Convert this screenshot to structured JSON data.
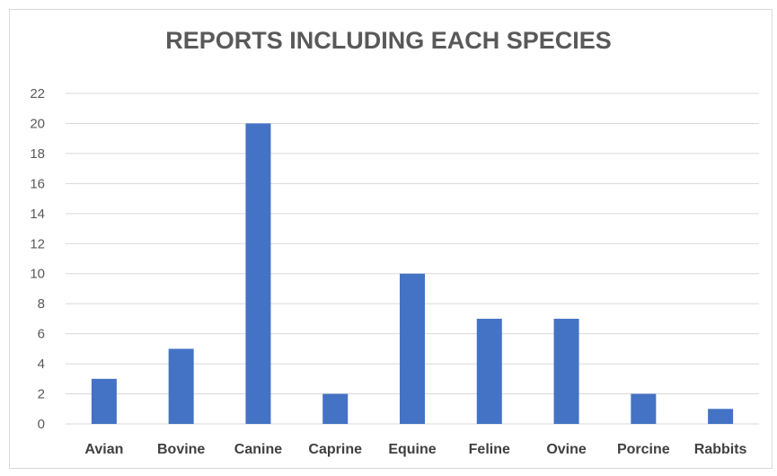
{
  "chart_data": {
    "type": "bar",
    "title": "REPORTS INCLUDING EACH SPECIES",
    "xlabel": "",
    "ylabel": "",
    "categories": [
      "Avian",
      "Bovine",
      "Canine",
      "Caprine",
      "Equine",
      "Feline",
      "Ovine",
      "Porcine",
      "Rabbits"
    ],
    "values": [
      3,
      5,
      20,
      2,
      10,
      7,
      7,
      2,
      1
    ],
    "ylim": [
      0,
      22
    ],
    "yticks": [
      0,
      2,
      4,
      6,
      8,
      10,
      12,
      14,
      16,
      18,
      20,
      22
    ],
    "grid": true,
    "legend": "none",
    "bar_color": "#4472C4",
    "grid_color": "#d9d9d9"
  }
}
